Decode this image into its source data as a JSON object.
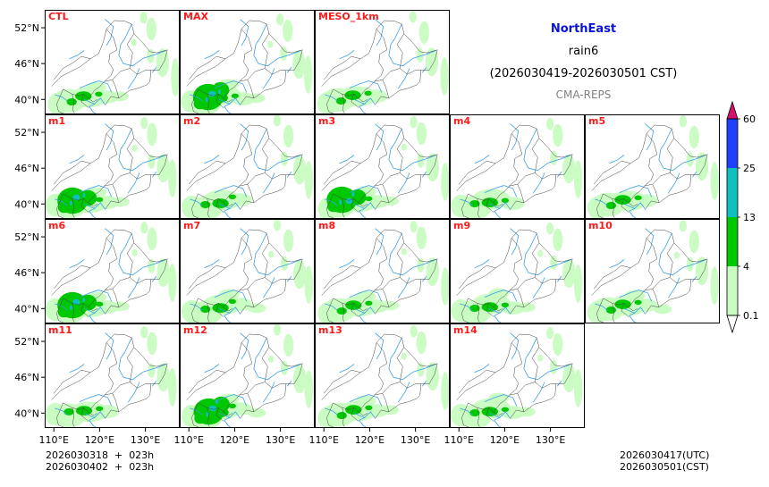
{
  "title": {
    "region": "NorthEast",
    "variable": "rain6",
    "period": "(2026030419-2026030501 CST)",
    "source": "CMA-REPS"
  },
  "footer": {
    "init_lines": [
      "2026030318  +  023h",
      "2026030402  +  023h"
    ],
    "valid_lines": [
      "2026030417(UTC)",
      "2026030501(CST)"
    ]
  },
  "colors": {
    "panel_label": "#ff1a1a",
    "water": "#3aa0e8",
    "border": "#444444",
    "frame": "#000000"
  },
  "chart_data": {
    "type": "heatmap",
    "description_variable": "6-hour accumulated rainfall (mm)",
    "panels": [
      {
        "label": "CTL",
        "row": 0,
        "col": 0,
        "level": 2
      },
      {
        "label": "MAX",
        "row": 0,
        "col": 1,
        "level": 3
      },
      {
        "label": "MESO_1km",
        "row": 0,
        "col": 2,
        "level": 1
      },
      {
        "label": "m1",
        "row": 1,
        "col": 0,
        "level": 3
      },
      {
        "label": "m2",
        "row": 1,
        "col": 1,
        "level": 1
      },
      {
        "label": "m3",
        "row": 1,
        "col": 2,
        "level": 3
      },
      {
        "label": "m4",
        "row": 1,
        "col": 3,
        "level": 1
      },
      {
        "label": "m5",
        "row": 1,
        "col": 4,
        "level": 1
      },
      {
        "label": "m6",
        "row": 2,
        "col": 0,
        "level": 3
      },
      {
        "label": "m7",
        "row": 2,
        "col": 1,
        "level": 2
      },
      {
        "label": "m8",
        "row": 2,
        "col": 2,
        "level": 2
      },
      {
        "label": "m9",
        "row": 2,
        "col": 3,
        "level": 2
      },
      {
        "label": "m10",
        "row": 2,
        "col": 4,
        "level": 2
      },
      {
        "label": "m11",
        "row": 3,
        "col": 0,
        "level": 1
      },
      {
        "label": "m12",
        "row": 3,
        "col": 1,
        "level": 3
      },
      {
        "label": "m13",
        "row": 3,
        "col": 2,
        "level": 2
      },
      {
        "label": "m14",
        "row": 3,
        "col": 3,
        "level": 2
      }
    ],
    "lat_ticks": [
      {
        "value": 52,
        "label": "52°N"
      },
      {
        "value": 46,
        "label": "46°N"
      },
      {
        "value": 40,
        "label": "40°N"
      }
    ],
    "lon_ticks": [
      {
        "value": 110,
        "label": "110°E"
      },
      {
        "value": 120,
        "label": "120°E"
      },
      {
        "value": 130,
        "label": "130°E"
      }
    ],
    "lat_range": [
      37.5,
      55
    ],
    "lon_range": [
      108,
      137.5
    ],
    "colorbar": {
      "levels": [
        0.1,
        4,
        13,
        25,
        60
      ],
      "labels": [
        "0.1",
        "4",
        "13",
        "25",
        "60"
      ],
      "colors": [
        "#c8fcc0",
        "#00c800",
        "#10c0c0",
        "#2040ff"
      ],
      "extend_low_color": "#ffffff",
      "extend_high_color": "#d4146c"
    }
  }
}
